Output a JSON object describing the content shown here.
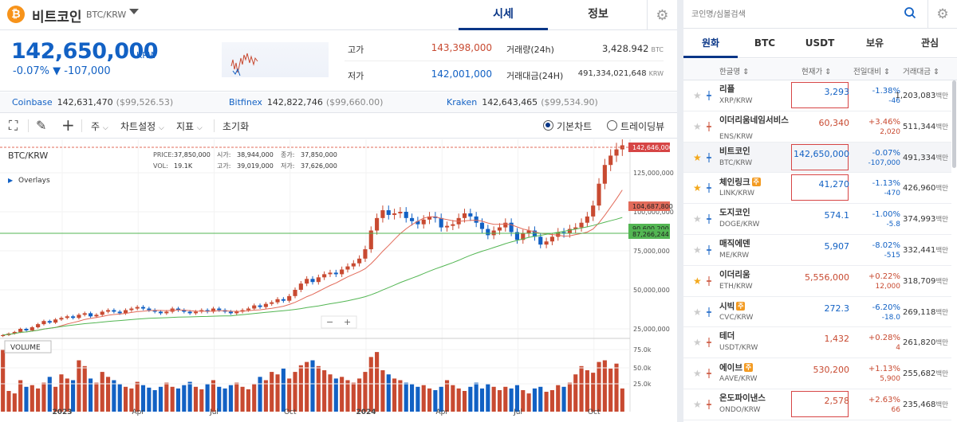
{
  "header": {
    "coin_logo": "₿",
    "coin_name": "비트코인",
    "pair": "BTC/KRW",
    "tabs": [
      {
        "label": "시세",
        "active": true
      },
      {
        "label": "정보",
        "active": false
      }
    ]
  },
  "ticker": {
    "price": "142,650,000",
    "unit": "KRW",
    "change": "-0.07% ▼ -107,000",
    "high_label": "고가",
    "high": "143,398,000",
    "low_label": "저가",
    "low": "142,001,000",
    "vol_label": "거래량(24h)",
    "vol": "3,428.942",
    "vol_unit": "BTC",
    "amt_label": "거래대금(24H)",
    "amt": "491,334,021,648",
    "amt_unit": "KRW"
  },
  "exchanges": [
    {
      "name": "Coinbase",
      "price": "142,631,470",
      "usd": "($99,526.53)"
    },
    {
      "name": "Bitfinex",
      "price": "142,822,746",
      "usd": "($99,660.00)"
    },
    {
      "name": "Kraken",
      "price": "142,643,465",
      "usd": "($99,534.90)"
    }
  ],
  "toolbar": {
    "period": "주",
    "chart_settings": "차트설정",
    "indicators": "지표",
    "reset": "초기화",
    "basic_chart": "기본차트",
    "tradingview": "트레이딩뷰"
  },
  "chart_data": {
    "type": "candlestick",
    "title": "BTC/KRW",
    "overlays_label": "Overlays",
    "volume_label": "VOLUME",
    "info": {
      "price_label": "PRICE:",
      "price": "37,850,000",
      "vol_label": "VOL:",
      "vol": "19.1K",
      "open_label": "시가:",
      "open": "38,944,000",
      "high_label": "고가:",
      "high": "39,019,000",
      "close_label": "종가:",
      "close": "37,850,000",
      "low_label": "저가:",
      "low": "37,626,000"
    },
    "y_ticks": [
      "125,000,000",
      "100,000,000",
      "75,000,000",
      "50,000,000",
      "25,000,000"
    ],
    "y_tick_values": [
      125000000,
      100000000,
      75000000,
      50000000,
      25000000
    ],
    "vol_ticks": [
      "75.0k",
      "50.0k",
      "25.0k"
    ],
    "x_ticks": [
      "2023",
      "Apr",
      "Jul",
      "Oct",
      "2024",
      "Apr",
      "Jul",
      "Oct"
    ],
    "last_price_tag": "142,646,000",
    "ma_tags": [
      "104,687,800",
      "90,600,200",
      "87,266,244"
    ],
    "zoom_minus": "−",
    "zoom_plus": "+",
    "weekly_close": [
      21,
      22,
      23,
      25,
      24,
      26,
      28,
      30,
      29,
      31,
      32,
      33,
      32,
      34,
      35,
      33,
      34,
      36,
      37,
      36,
      35,
      37,
      38,
      39,
      38,
      37,
      36,
      35,
      36,
      38,
      37,
      36,
      35,
      36,
      37,
      36,
      38,
      37,
      36,
      35,
      36,
      37,
      38,
      40,
      39,
      41,
      42,
      44,
      43,
      46,
      50,
      54,
      57,
      55,
      58,
      60,
      61,
      60,
      63,
      65,
      67,
      70,
      76,
      88,
      96,
      101,
      98,
      99,
      100,
      96,
      94,
      92,
      95,
      97,
      96,
      90,
      91,
      92,
      96,
      99,
      97,
      93,
      89,
      85,
      88,
      90,
      93,
      87,
      82,
      86,
      88,
      84,
      79,
      81,
      84,
      87,
      86,
      89,
      90,
      93,
      97,
      104,
      118,
      130,
      136,
      140,
      142.6
    ],
    "weekly_volume": [
      75,
      25,
      22,
      38,
      30,
      32,
      28,
      35,
      42,
      30,
      45,
      40,
      38,
      62,
      55,
      40,
      35,
      48,
      42,
      38,
      33,
      30,
      28,
      36,
      32,
      29,
      26,
      30,
      35,
      30,
      28,
      32,
      36,
      30,
      27,
      33,
      38,
      30,
      28,
      32,
      35,
      30,
      27,
      33,
      42,
      38,
      48,
      45,
      52,
      40,
      48,
      56,
      60,
      62,
      55,
      50,
      45,
      40,
      42,
      38,
      35,
      40,
      48,
      66,
      72,
      50,
      45,
      40,
      38,
      35,
      33,
      30,
      32,
      28,
      26,
      30,
      38,
      32,
      28,
      25,
      30,
      35,
      28,
      33,
      30,
      26,
      30,
      28,
      32,
      26,
      22,
      28,
      30,
      24,
      26,
      32,
      30,
      35,
      45,
      55,
      50,
      47,
      60,
      62,
      52,
      58,
      28
    ]
  },
  "search": {
    "placeholder": "코인명/심볼검색"
  },
  "market_tabs": [
    {
      "label": "원화",
      "active": true
    },
    {
      "label": "BTC"
    },
    {
      "label": "USDT"
    },
    {
      "label": "보유"
    },
    {
      "label": "관심"
    }
  ],
  "columns": {
    "name": "한글명 ⇕",
    "price": "현재가 ⇕",
    "change": "전일대비 ⇕",
    "volume": "거래대금 ⇕"
  },
  "coins": [
    {
      "name": "리플",
      "symbol": "XRP/KRW",
      "price": "3,293",
      "pct": "-1.38%",
      "abs": "-46",
      "vol": "1,203,083",
      "unit": "백만",
      "dir": "down",
      "star": false,
      "boxed": true,
      "badge": ""
    },
    {
      "name": "이더리움네임서비스",
      "symbol": "ENS/KRW",
      "price": "60,340",
      "pct": "+3.46%",
      "abs": "2,020",
      "vol": "511,344",
      "unit": "백만",
      "dir": "up",
      "star": false,
      "boxed": false,
      "badge": ""
    },
    {
      "name": "비트코인",
      "symbol": "BTC/KRW",
      "price": "142,650,000",
      "pct": "-0.07%",
      "abs": "-107,000",
      "vol": "491,334",
      "unit": "백만",
      "dir": "down",
      "star": true,
      "boxed": true,
      "badge": ""
    },
    {
      "name": "체인링크",
      "symbol": "LINK/KRW",
      "price": "41,270",
      "pct": "-1.13%",
      "abs": "-470",
      "vol": "426,960",
      "unit": "백만",
      "dir": "down",
      "star": true,
      "boxed": true,
      "badge": "주"
    },
    {
      "name": "도지코인",
      "symbol": "DOGE/KRW",
      "price": "574.1",
      "pct": "-1.00%",
      "abs": "-5.8",
      "vol": "374,993",
      "unit": "백만",
      "dir": "down",
      "star": false,
      "boxed": false,
      "badge": ""
    },
    {
      "name": "매직에덴",
      "symbol": "ME/KRW",
      "price": "5,907",
      "pct": "-8.02%",
      "abs": "-515",
      "vol": "332,441",
      "unit": "백만",
      "dir": "down",
      "star": false,
      "boxed": false,
      "badge": ""
    },
    {
      "name": "이더리움",
      "symbol": "ETH/KRW",
      "price": "5,556,000",
      "pct": "+0.22%",
      "abs": "12,000",
      "vol": "318,709",
      "unit": "백만",
      "dir": "up",
      "star": true,
      "boxed": false,
      "badge": ""
    },
    {
      "name": "시빅",
      "symbol": "CVC/KRW",
      "price": "272.3",
      "pct": "-6.20%",
      "abs": "-18.0",
      "vol": "269,118",
      "unit": "백만",
      "dir": "down",
      "star": false,
      "boxed": false,
      "badge": "주"
    },
    {
      "name": "테더",
      "symbol": "USDT/KRW",
      "price": "1,432",
      "pct": "+0.28%",
      "abs": "4",
      "vol": "261,820",
      "unit": "백만",
      "dir": "up",
      "star": false,
      "boxed": false,
      "badge": ""
    },
    {
      "name": "에이브",
      "symbol": "AAVE/KRW",
      "price": "530,200",
      "pct": "+1.13%",
      "abs": "5,900",
      "vol": "255,682",
      "unit": "백만",
      "dir": "up",
      "star": false,
      "boxed": false,
      "badge": "주"
    },
    {
      "name": "온도파이낸스",
      "symbol": "ONDO/KRW",
      "price": "2,578",
      "pct": "+2.63%",
      "abs": "66",
      "vol": "235,468",
      "unit": "백만",
      "dir": "up",
      "star": false,
      "boxed": true,
      "badge": ""
    }
  ],
  "colors": {
    "up": "#c84a31",
    "down": "#1261c4",
    "accent": "#093687"
  }
}
